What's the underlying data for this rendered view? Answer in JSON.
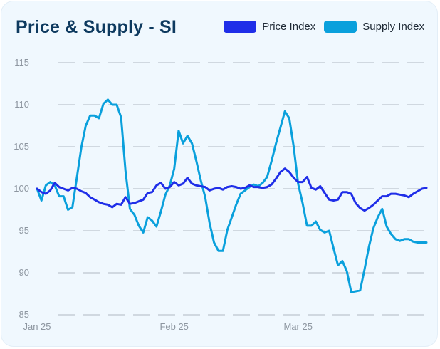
{
  "chart_data": {
    "type": "line",
    "title": "Price & Supply - SI",
    "xlabel": "",
    "ylabel": "",
    "ylim": [
      85,
      115
    ],
    "yticks": [
      85,
      90,
      95,
      100,
      105,
      110,
      115
    ],
    "xtick_labels": [
      {
        "label": "Jan 25",
        "x": 0
      },
      {
        "label": "Feb 25",
        "x": 31
      },
      {
        "label": "Mar 25",
        "x": 59
      }
    ],
    "grid": "horizontal dashed",
    "legend_position": "top-right",
    "x_count": 89,
    "series": [
      {
        "name": "Price Index",
        "color": "#1f2ee8",
        "values": [
          100.0,
          99.6,
          99.4,
          99.8,
          100.7,
          100.2,
          100.0,
          99.8,
          100.1,
          100.0,
          99.7,
          99.5,
          99.0,
          98.7,
          98.4,
          98.2,
          98.1,
          97.8,
          98.2,
          98.1,
          99.0,
          98.2,
          98.3,
          98.5,
          98.7,
          99.5,
          99.6,
          100.4,
          100.7,
          100.0,
          100.2,
          100.8,
          100.4,
          100.6,
          101.3,
          100.6,
          100.4,
          100.3,
          100.2,
          99.8,
          100.0,
          100.1,
          99.9,
          100.2,
          100.3,
          100.2,
          100.0,
          100.1,
          100.4,
          100.2,
          100.2,
          100.1,
          100.2,
          100.5,
          101.2,
          102.0,
          102.4,
          102.0,
          101.3,
          100.8,
          100.8,
          101.4,
          100.1,
          99.9,
          100.3,
          99.5,
          98.7,
          98.6,
          98.7,
          99.6,
          99.6,
          99.4,
          98.3,
          97.7,
          97.4,
          97.7,
          98.1,
          98.6,
          99.1,
          99.1,
          99.4,
          99.4,
          99.3,
          99.2,
          99.0,
          99.4,
          99.7,
          100.0,
          100.1
        ]
      },
      {
        "name": "Supply Index",
        "color": "#0aa0dc",
        "values": [
          100.0,
          98.6,
          100.4,
          100.8,
          100.4,
          99.1,
          99.1,
          97.5,
          97.8,
          101.3,
          104.9,
          107.5,
          108.7,
          108.7,
          108.4,
          110.1,
          110.6,
          110.0,
          110.0,
          108.5,
          102.1,
          97.6,
          96.9,
          95.6,
          94.8,
          96.6,
          96.2,
          95.5,
          97.3,
          99.3,
          100.4,
          102.4,
          106.9,
          105.4,
          106.3,
          105.4,
          103.3,
          101.0,
          99.0,
          95.9,
          93.6,
          92.6,
          92.6,
          95.1,
          96.6,
          98.1,
          99.4,
          99.8,
          100.2,
          100.5,
          100.3,
          100.7,
          101.4,
          103.3,
          105.4,
          107.3,
          109.2,
          108.4,
          105.0,
          100.6,
          98.3,
          95.6,
          95.6,
          96.1,
          95.1,
          94.8,
          95.0,
          92.9,
          90.9,
          91.4,
          90.2,
          87.7,
          87.8,
          87.9,
          90.4,
          93.1,
          95.3,
          96.6,
          97.6,
          95.5,
          94.6,
          94.0,
          93.8,
          94.0,
          94.0,
          93.7,
          93.6,
          93.6,
          93.6
        ]
      }
    ]
  }
}
